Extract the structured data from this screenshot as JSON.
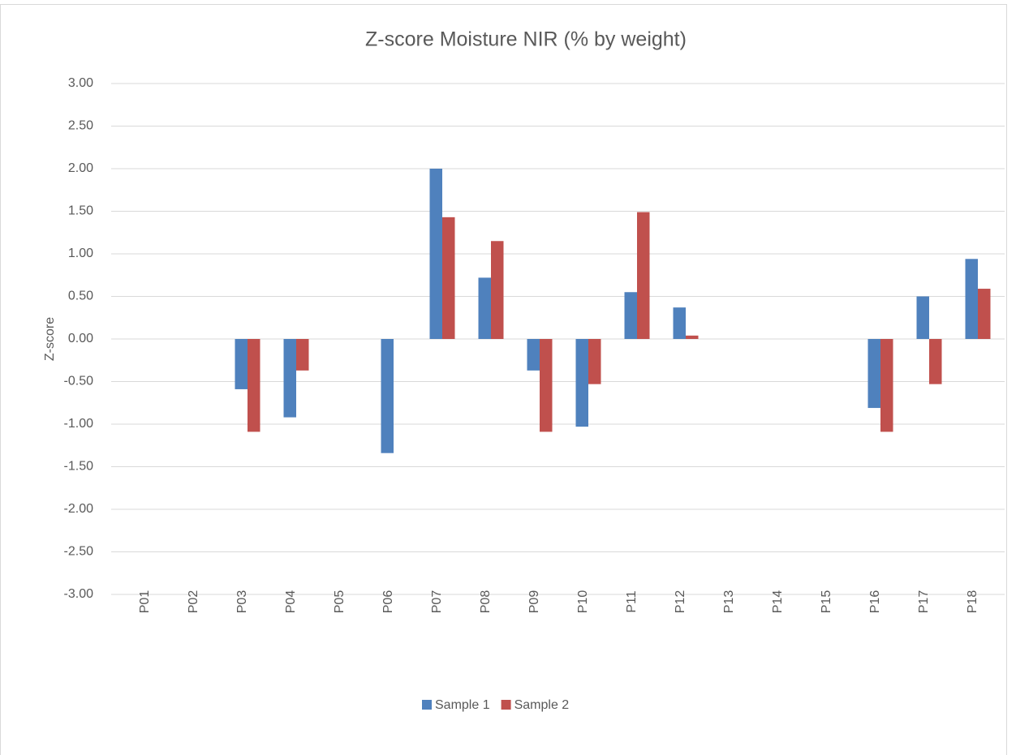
{
  "chart_data": {
    "type": "bar",
    "title": "Z-score Moisture NIR (% by weight)",
    "y_label": "Z-score",
    "categories": [
      "P01",
      "P02",
      "P03",
      "P04",
      "P05",
      "P06",
      "P07",
      "P08",
      "P09",
      "P10",
      "P11",
      "P12",
      "P13",
      "P14",
      "P15",
      "P16",
      "P17",
      "P18"
    ],
    "series": [
      {
        "name": "Sample 1",
        "color": "#4f81bd",
        "values": [
          null,
          null,
          -0.59,
          -0.92,
          null,
          -1.34,
          2.0,
          0.72,
          -0.37,
          -1.03,
          0.55,
          0.37,
          null,
          null,
          null,
          -0.81,
          0.5,
          0.94
        ]
      },
      {
        "name": "Sample 2",
        "color": "#c0504d",
        "values": [
          null,
          null,
          -1.09,
          -0.37,
          null,
          null,
          1.43,
          1.15,
          -1.09,
          -0.53,
          1.49,
          0.04,
          null,
          null,
          null,
          -1.09,
          -0.53,
          0.59
        ]
      }
    ],
    "ylim": [
      -3.8,
      3
    ],
    "yticks": [
      {
        "value": 3,
        "label": "3.00"
      },
      {
        "value": 2.5,
        "label": "2.50"
      },
      {
        "value": 2,
        "label": "2.00"
      },
      {
        "value": 1.5,
        "label": "1.50"
      },
      {
        "value": 1,
        "label": "1.00"
      },
      {
        "value": 0.5,
        "label": "0.50"
      },
      {
        "value": 0,
        "label": "0.00"
      },
      {
        "value": -0.5,
        "label": "-0.50"
      },
      {
        "value": -1,
        "label": "-1.00"
      },
      {
        "value": -1.5,
        "label": "-1.50"
      },
      {
        "value": -2,
        "label": "-2.00"
      },
      {
        "value": -2.5,
        "label": "-2.50"
      },
      {
        "value": -3,
        "label": "-3.00"
      }
    ],
    "grid": true,
    "legend": "bottom"
  }
}
